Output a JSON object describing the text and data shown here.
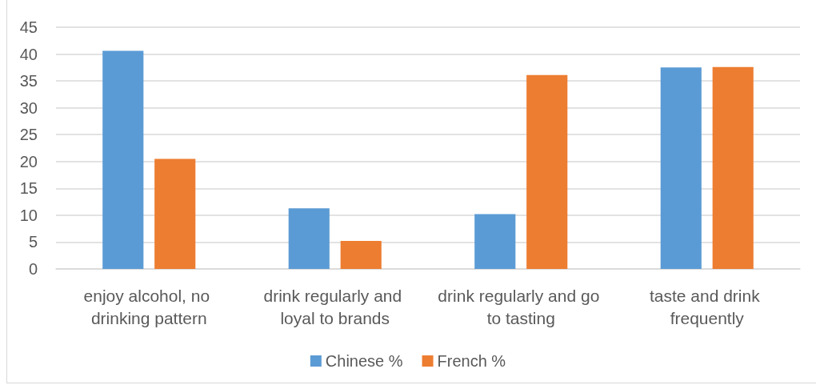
{
  "chart_data": {
    "type": "bar",
    "categories": [
      "enjoy alcohol, no drinking pattern",
      "drink regularly and loyal to brands",
      "drink regularly and go to tasting",
      "taste and drink frequently"
    ],
    "series": [
      {
        "name": "Chinese %",
        "color": "#5b9bd5",
        "values": [
          40.6,
          11.3,
          10.2,
          37.5
        ]
      },
      {
        "name": "French %",
        "color": "#ed7d31",
        "values": [
          20.5,
          5.2,
          36.1,
          37.6
        ]
      }
    ],
    "ylim": [
      0,
      45
    ],
    "yticks": [
      0,
      5,
      10,
      15,
      20,
      25,
      30,
      35,
      40,
      45
    ],
    "grid": true,
    "legend": "bottom"
  }
}
